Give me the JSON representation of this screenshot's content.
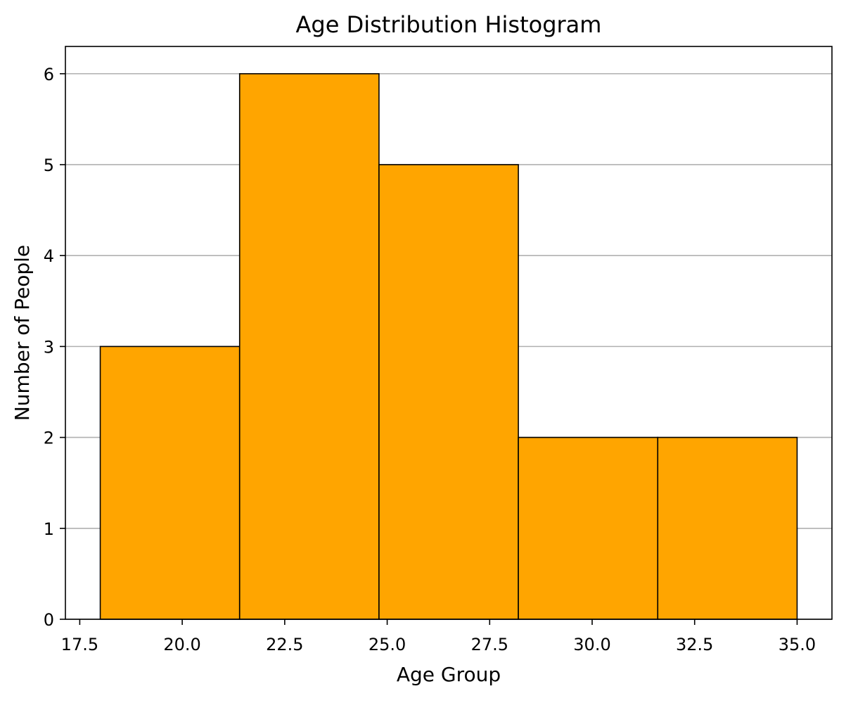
{
  "chart_data": {
    "type": "bar",
    "title": "Age Distribution Histogram",
    "xlabel": "Age Group",
    "ylabel": "Number of People",
    "bins": [
      {
        "start": 18.0,
        "end": 21.4,
        "value": 3
      },
      {
        "start": 21.4,
        "end": 24.8,
        "value": 6
      },
      {
        "start": 24.8,
        "end": 28.2,
        "value": 5
      },
      {
        "start": 28.2,
        "end": 31.6,
        "value": 2
      },
      {
        "start": 31.6,
        "end": 35.0,
        "value": 2
      }
    ],
    "xlim": [
      17.15,
      35.85
    ],
    "ylim": [
      0,
      6.3
    ],
    "xticks": [
      17.5,
      20.0,
      22.5,
      25.0,
      27.5,
      30.0,
      32.5,
      35.0
    ],
    "xtick_labels": [
      "17.5",
      "20.0",
      "22.5",
      "25.0",
      "27.5",
      "30.0",
      "32.5",
      "35.0"
    ],
    "yticks": [
      0,
      1,
      2,
      3,
      4,
      5,
      6
    ],
    "ytick_labels": [
      "0",
      "1",
      "2",
      "3",
      "4",
      "5",
      "6"
    ],
    "grid": "y",
    "bar_color": "#ffa500",
    "edge_color": "#000000"
  }
}
